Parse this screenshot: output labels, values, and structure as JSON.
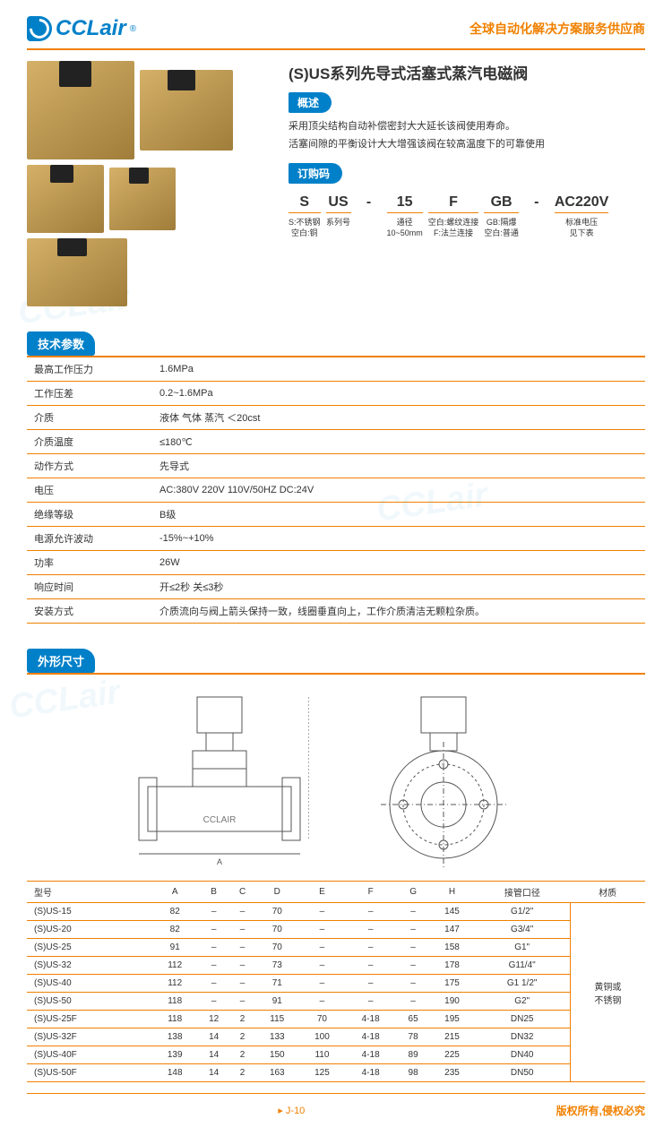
{
  "brand": {
    "name": "CCLair",
    "slogan": "全球自动化解决方案服务供应商"
  },
  "title": "(S)US系列先导式活塞式蒸汽电磁阀",
  "overview": {
    "heading": "概述",
    "lines": [
      "采用顶尖结构自动补偿密封大大延长该阀使用寿命。",
      "活塞间隙的平衡设计大大增强该阀在较高温度下的可靠使用"
    ]
  },
  "orderCode": {
    "heading": "订购码",
    "cells": [
      {
        "big": "S",
        "sub": "S:不锈钢\n空白:铜"
      },
      {
        "big": "US",
        "sub": "系列号"
      },
      {
        "big": "-",
        "sep": true,
        "sub": ""
      },
      {
        "big": "15",
        "sub": "通径\n10~50mm"
      },
      {
        "big": "F",
        "sub": "空白:螺纹连接\nF:法兰连接"
      },
      {
        "big": "GB",
        "sub": "GB:隔爆\n空白:普通"
      },
      {
        "big": "-",
        "sep": true,
        "sub": ""
      },
      {
        "big": "AC220V",
        "sub": "标准电压\n见下表"
      }
    ]
  },
  "specs": {
    "heading": "技术参数",
    "rows": [
      [
        "最高工作压力",
        "1.6MPa"
      ],
      [
        "工作压差",
        "0.2~1.6MPa"
      ],
      [
        "介质",
        "液体 气体 蒸汽 ＜20cst"
      ],
      [
        "介质温度",
        "≤180℃"
      ],
      [
        "动作方式",
        "先导式"
      ],
      [
        "电压",
        "AC:380V 220V 110V/50HZ DC:24V"
      ],
      [
        "绝缘等级",
        "B级"
      ],
      [
        "电源允许波动",
        "-15%~+10%"
      ],
      [
        "功率",
        "26W"
      ],
      [
        "响应时间",
        "开≤2秒  关≤3秒"
      ],
      [
        "安装方式",
        "介质流向与阀上箭头保持一致，线圈垂直向上，工作介质清洁无颗粒杂质。"
      ]
    ]
  },
  "dimensions": {
    "heading": "外形尺寸",
    "columns": [
      "型号",
      "A",
      "B",
      "C",
      "D",
      "E",
      "F",
      "G",
      "H",
      "接管口径",
      "材质"
    ],
    "rows": [
      [
        "(S)US-15",
        "82",
        "–",
        "–",
        "70",
        "–",
        "–",
        "–",
        "145",
        "G1/2\"",
        ""
      ],
      [
        "(S)US-20",
        "82",
        "–",
        "–",
        "70",
        "–",
        "–",
        "–",
        "147",
        "G3/4\"",
        ""
      ],
      [
        "(S)US-25",
        "91",
        "–",
        "–",
        "70",
        "–",
        "–",
        "–",
        "158",
        "G1\"",
        ""
      ],
      [
        "(S)US-32",
        "112",
        "–",
        "–",
        "73",
        "–",
        "–",
        "–",
        "178",
        "G11/4\"",
        ""
      ],
      [
        "(S)US-40",
        "112",
        "–",
        "–",
        "71",
        "–",
        "–",
        "–",
        "175",
        "G1 1/2\"",
        ""
      ],
      [
        "(S)US-50",
        "118",
        "–",
        "–",
        "91",
        "–",
        "–",
        "–",
        "190",
        "G2\"",
        ""
      ],
      [
        "(S)US-25F",
        "118",
        "12",
        "2",
        "115",
        "70",
        "4-18",
        "65",
        "195",
        "DN25",
        ""
      ],
      [
        "(S)US-32F",
        "138",
        "14",
        "2",
        "133",
        "100",
        "4-18",
        "78",
        "215",
        "DN32",
        ""
      ],
      [
        "(S)US-40F",
        "139",
        "14",
        "2",
        "150",
        "110",
        "4-18",
        "89",
        "225",
        "DN40",
        ""
      ],
      [
        "(S)US-50F",
        "148",
        "14",
        "2",
        "163",
        "125",
        "4-18",
        "98",
        "235",
        "DN50",
        ""
      ]
    ],
    "material": "黄铜或\n不锈钢"
  },
  "footer": {
    "page": "J-10",
    "copyright": "版权所有,侵权必究"
  },
  "colors": {
    "brand": "#0080c8",
    "accent": "#f08000",
    "text": "#333"
  }
}
